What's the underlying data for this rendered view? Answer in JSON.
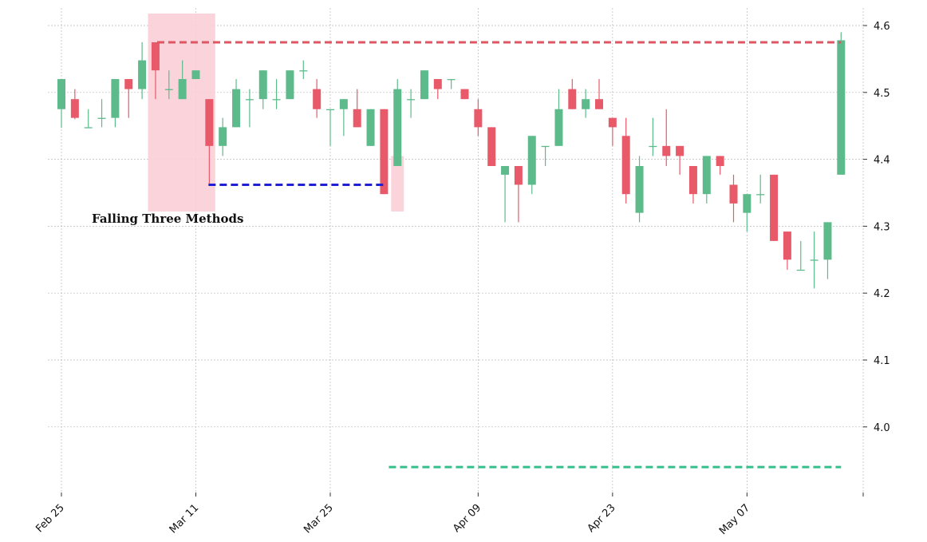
{
  "chart_data": {
    "type": "candlestick",
    "title": "",
    "xlabel": "",
    "ylabel": "",
    "ylim": [
      3.9,
      4.62
    ],
    "grid": true,
    "y_ticks": [
      4.0,
      4.1,
      4.2,
      4.3,
      4.4,
      4.5,
      4.6
    ],
    "y_tick_labels": [
      "4.0",
      "4.1",
      "4.2",
      "4.3",
      "4.4",
      "4.5",
      "4.6"
    ],
    "x_ticks": [
      "Feb 25",
      "Mar 11",
      "Mar 25",
      "Apr 09",
      "Apr 23",
      "May 07"
    ],
    "colors": {
      "up": "#5dbb8b",
      "down": "#e85a6a",
      "highlight": "#f9cfd6",
      "resistance": "#e05561",
      "support": "#1f1fd6",
      "target": "#33c08a"
    },
    "candles": [
      {
        "date": "Feb 25",
        "o": 4.475,
        "h": 4.52,
        "l": 4.447,
        "c": 4.52
      },
      {
        "date": "Feb 26",
        "o": 4.49,
        "h": 4.505,
        "l": 4.46,
        "c": 4.462
      },
      {
        "date": "Feb 27",
        "o": 4.448,
        "h": 4.475,
        "l": 4.448,
        "c": 4.448
      },
      {
        "date": "Feb 28",
        "o": 4.462,
        "h": 4.49,
        "l": 4.448,
        "c": 4.462
      },
      {
        "date": "Mar 01",
        "o": 4.462,
        "h": 4.52,
        "l": 4.448,
        "c": 4.52
      },
      {
        "date": "Mar 04",
        "o": 4.52,
        "h": 4.52,
        "l": 4.462,
        "c": 4.505
      },
      {
        "date": "Mar 05",
        "o": 4.505,
        "h": 4.575,
        "l": 4.49,
        "c": 4.548
      },
      {
        "date": "Mar 06",
        "o": 4.575,
        "h": 4.575,
        "l": 4.49,
        "c": 4.533
      },
      {
        "date": "Mar 07",
        "o": 4.505,
        "h": 4.533,
        "l": 4.49,
        "c": 4.505
      },
      {
        "date": "Mar 08",
        "o": 4.49,
        "h": 4.548,
        "l": 4.49,
        "c": 4.52
      },
      {
        "date": "Mar 11",
        "o": 4.52,
        "h": 4.533,
        "l": 4.52,
        "c": 4.533
      },
      {
        "date": "Mar 12",
        "o": 4.49,
        "h": 4.49,
        "l": 4.362,
        "c": 4.42
      },
      {
        "date": "Mar 13",
        "o": 4.42,
        "h": 4.462,
        "l": 4.405,
        "c": 4.448
      },
      {
        "date": "Mar 14",
        "o": 4.448,
        "h": 4.52,
        "l": 4.448,
        "c": 4.505
      },
      {
        "date": "Mar 15",
        "o": 4.49,
        "h": 4.505,
        "l": 4.448,
        "c": 4.49
      },
      {
        "date": "Mar 18",
        "o": 4.49,
        "h": 4.533,
        "l": 4.475,
        "c": 4.533
      },
      {
        "date": "Mar 19",
        "o": 4.49,
        "h": 4.52,
        "l": 4.475,
        "c": 4.49
      },
      {
        "date": "Mar 20",
        "o": 4.49,
        "h": 4.533,
        "l": 4.49,
        "c": 4.533
      },
      {
        "date": "Mar 21",
        "o": 4.533,
        "h": 4.548,
        "l": 4.52,
        "c": 4.533
      },
      {
        "date": "Mar 22",
        "o": 4.505,
        "h": 4.52,
        "l": 4.462,
        "c": 4.475
      },
      {
        "date": "Mar 25",
        "o": 4.475,
        "h": 4.475,
        "l": 4.42,
        "c": 4.475
      },
      {
        "date": "Mar 26",
        "o": 4.475,
        "h": 4.49,
        "l": 4.435,
        "c": 4.49
      },
      {
        "date": "Mar 27",
        "o": 4.475,
        "h": 4.505,
        "l": 4.448,
        "c": 4.448
      },
      {
        "date": "Mar 28",
        "o": 4.42,
        "h": 4.475,
        "l": 4.42,
        "c": 4.475
      },
      {
        "date": "Mar 29",
        "o": 4.475,
        "h": 4.475,
        "l": 4.348,
        "c": 4.348
      },
      {
        "date": "Apr 01",
        "o": 4.39,
        "h": 4.52,
        "l": 4.39,
        "c": 4.505
      },
      {
        "date": "Apr 02",
        "o": 4.49,
        "h": 4.505,
        "l": 4.462,
        "c": 4.49
      },
      {
        "date": "Apr 03",
        "o": 4.49,
        "h": 4.533,
        "l": 4.49,
        "c": 4.533
      },
      {
        "date": "Apr 04",
        "o": 4.52,
        "h": 4.52,
        "l": 4.49,
        "c": 4.505
      },
      {
        "date": "Apr 05",
        "o": 4.52,
        "h": 4.52,
        "l": 4.505,
        "c": 4.52
      },
      {
        "date": "Apr 08",
        "o": 4.505,
        "h": 4.505,
        "l": 4.49,
        "c": 4.49
      },
      {
        "date": "Apr 09",
        "o": 4.475,
        "h": 4.49,
        "l": 4.435,
        "c": 4.448
      },
      {
        "date": "Apr 10",
        "o": 4.448,
        "h": 4.448,
        "l": 4.39,
        "c": 4.39
      },
      {
        "date": "Apr 11",
        "o": 4.377,
        "h": 4.39,
        "l": 4.306,
        "c": 4.39
      },
      {
        "date": "Apr 12",
        "o": 4.39,
        "h": 4.39,
        "l": 4.306,
        "c": 4.362
      },
      {
        "date": "Apr 15",
        "o": 4.362,
        "h": 4.435,
        "l": 4.348,
        "c": 4.435
      },
      {
        "date": "Apr 16",
        "o": 4.42,
        "h": 4.42,
        "l": 4.39,
        "c": 4.42
      },
      {
        "date": "Apr 17",
        "o": 4.42,
        "h": 4.505,
        "l": 4.42,
        "c": 4.475
      },
      {
        "date": "Apr 18",
        "o": 4.505,
        "h": 4.52,
        "l": 4.475,
        "c": 4.475
      },
      {
        "date": "Apr 19",
        "o": 4.475,
        "h": 4.505,
        "l": 4.462,
        "c": 4.49
      },
      {
        "date": "Apr 22",
        "o": 4.49,
        "h": 4.52,
        "l": 4.475,
        "c": 4.475
      },
      {
        "date": "Apr 23",
        "o": 4.462,
        "h": 4.462,
        "l": 4.42,
        "c": 4.448
      },
      {
        "date": "Apr 24",
        "o": 4.435,
        "h": 4.462,
        "l": 4.334,
        "c": 4.348
      },
      {
        "date": "Apr 25",
        "o": 4.32,
        "h": 4.405,
        "l": 4.306,
        "c": 4.39
      },
      {
        "date": "Apr 26",
        "o": 4.42,
        "h": 4.462,
        "l": 4.405,
        "c": 4.42
      },
      {
        "date": "Apr 29",
        "o": 4.42,
        "h": 4.475,
        "l": 4.39,
        "c": 4.405
      },
      {
        "date": "Apr 30",
        "o": 4.42,
        "h": 4.42,
        "l": 4.377,
        "c": 4.405
      },
      {
        "date": "May 01",
        "o": 4.39,
        "h": 4.39,
        "l": 4.334,
        "c": 4.348
      },
      {
        "date": "May 02",
        "o": 4.348,
        "h": 4.405,
        "l": 4.334,
        "c": 4.405
      },
      {
        "date": "May 03",
        "o": 4.405,
        "h": 4.405,
        "l": 4.377,
        "c": 4.39
      },
      {
        "date": "May 06",
        "o": 4.362,
        "h": 4.377,
        "l": 4.306,
        "c": 4.334
      },
      {
        "date": "May 07",
        "o": 4.32,
        "h": 4.348,
        "l": 4.292,
        "c": 4.348
      },
      {
        "date": "May 08",
        "o": 4.348,
        "h": 4.377,
        "l": 4.334,
        "c": 4.348
      },
      {
        "date": "May 09",
        "o": 4.377,
        "h": 4.377,
        "l": 4.278,
        "c": 4.278
      },
      {
        "date": "May 10",
        "o": 4.292,
        "h": 4.292,
        "l": 4.235,
        "c": 4.25
      },
      {
        "date": "May 13",
        "o": 4.235,
        "h": 4.278,
        "l": 4.235,
        "c": 4.235
      },
      {
        "date": "May 14",
        "o": 4.25,
        "h": 4.292,
        "l": 4.207,
        "c": 4.25
      },
      {
        "date": "May 15",
        "o": 4.25,
        "h": 4.306,
        "l": 4.221,
        "c": 4.306
      },
      {
        "date": "May 16",
        "o": 4.377,
        "h": 4.59,
        "l": 4.377,
        "c": 4.578
      }
    ],
    "annotations": [
      {
        "name": "pattern-highlight",
        "text": "Falling Three Methods",
        "from_index": 7,
        "to_index": 11,
        "low": 4.322,
        "high": 4.618
      },
      {
        "name": "breakout-highlight",
        "text": "",
        "index": 25,
        "low": 4.322,
        "high": 4.405
      }
    ],
    "levels": [
      {
        "name": "resistance",
        "value": 4.575,
        "from_index": 7,
        "to_index": 58
      },
      {
        "name": "support",
        "value": 4.362,
        "from_index": 11,
        "to_index": 24
      },
      {
        "name": "target",
        "value": 3.94,
        "from_index": 24,
        "to_index": 58
      }
    ]
  }
}
